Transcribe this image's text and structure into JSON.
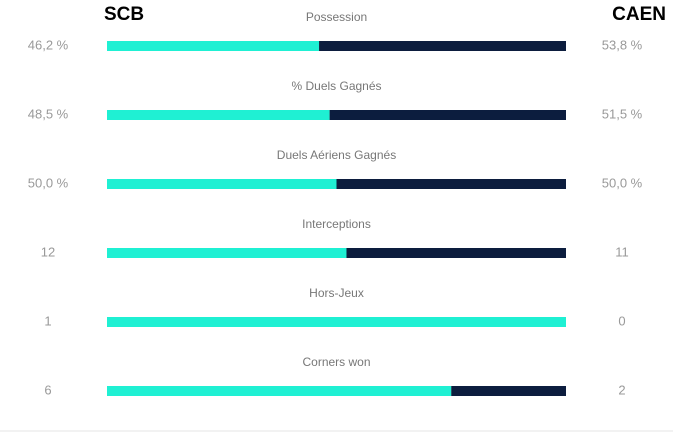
{
  "home_team": "SCB",
  "away_team": "CAEN",
  "colors": [
    "#1ff0d3",
    "#0c1d3e"
  ],
  "stats": [
    {
      "label": "Possession",
      "values": [
        46.2,
        53.8
      ],
      "value_labels": [
        "46,2 %",
        "53,8 %"
      ]
    },
    {
      "label": "% Duels Gagnés",
      "values": [
        48.5,
        51.5
      ],
      "value_labels": [
        "48,5 %",
        "51,5 %"
      ]
    },
    {
      "label": "Duels Aériens Gagnés",
      "values": [
        50.0,
        50.0
      ],
      "value_labels": [
        "50,0 %",
        "50,0 %"
      ]
    },
    {
      "label": "Interceptions",
      "values": [
        12,
        11
      ]
    },
    {
      "label": "Hors-Jeux",
      "values": [
        1,
        0
      ]
    },
    {
      "label": "Corners won",
      "values": [
        6,
        2
      ]
    }
  ]
}
